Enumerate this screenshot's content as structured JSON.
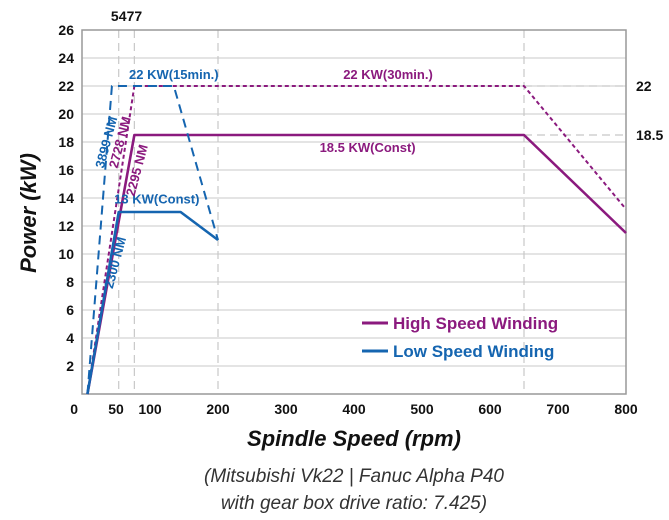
{
  "chart_data": {
    "type": "line",
    "xlabel": "Spindle Speed (rpm)",
    "ylabel": "Power (kW)",
    "caption_lines": [
      "(Mitsubishi Vk22 | Fanuc Alpha P40",
      "with gear box drive ratio: 7.425)"
    ],
    "xlim": [
      0,
      800
    ],
    "ylim": [
      0,
      26
    ],
    "x_ticks": [
      "0",
      "50",
      "100",
      "200",
      "300",
      "400",
      "500",
      "600",
      "700",
      "800"
    ],
    "y_ticks": [
      "2",
      "4",
      "6",
      "8",
      "10",
      "12",
      "14",
      "16",
      "18",
      "20",
      "22",
      "24",
      "26"
    ],
    "top_ticks": [
      {
        "x": 54,
        "label": "54"
      },
      {
        "x": 77,
        "label": "77"
      }
    ],
    "right_ticks": [
      {
        "y": 22,
        "label": "22"
      },
      {
        "y": 18.5,
        "label": "18.5"
      }
    ],
    "grid": true,
    "legend_position": "bottom-right",
    "colors": {
      "high": "#8b1a7e",
      "low": "#1565b0",
      "grid": "#c8c8c8",
      "frame": "#999999"
    },
    "series": [
      {
        "name": "High Speed Winding",
        "color": "#8b1a7e",
        "dash": false,
        "x": [
          8,
          77,
          650,
          800
        ],
        "y": [
          0,
          18.5,
          18.5,
          11.5
        ]
      },
      {
        "name": "",
        "color": "#8b1a7e",
        "dash": true,
        "x": [
          8,
          77,
          650,
          800
        ],
        "y": [
          0,
          22,
          22,
          13.2
        ]
      },
      {
        "name": "Low Speed Winding",
        "color": "#1565b0",
        "dash": false,
        "x": [
          8,
          54,
          145,
          200
        ],
        "y": [
          0,
          13,
          13,
          11
        ]
      },
      {
        "name": "",
        "color": "#1565b0",
        "dash": true,
        "x": [
          8,
          44,
          135,
          200
        ],
        "y": [
          0,
          22,
          22,
          11
        ]
      }
    ],
    "legend": [
      {
        "label": "High Speed Winding",
        "color": "#8b1a7e"
      },
      {
        "label": "Low Speed Winding",
        "color": "#1565b0"
      }
    ],
    "annotations": [
      {
        "text": "22 KW(15min.)",
        "x": 135,
        "y": 22.5,
        "color": "#1565b0",
        "rotate": false
      },
      {
        "text": "22 KW(30min.)",
        "x": 450,
        "y": 22.5,
        "color": "#8b1a7e",
        "rotate": false
      },
      {
        "text": "18.5 KW(Const)",
        "x": 420,
        "y": 17.3,
        "color": "#8b1a7e",
        "rotate": false
      },
      {
        "text": "13 KW(Const)",
        "x": 110,
        "y": 13.6,
        "color": "#1565b0",
        "rotate": false
      },
      {
        "text": "3899 NM",
        "x": 42,
        "y": 17.9,
        "color": "#1565b0",
        "rotate": true
      },
      {
        "text": "2728 NM",
        "x": 62,
        "y": 17.9,
        "color": "#8b1a7e",
        "rotate": true
      },
      {
        "text": "2295 NM",
        "x": 87,
        "y": 15.9,
        "color": "#8b1a7e",
        "rotate": true
      },
      {
        "text": "2300 NM",
        "x": 55,
        "y": 9.3,
        "color": "#1565b0",
        "rotate": true
      }
    ]
  }
}
